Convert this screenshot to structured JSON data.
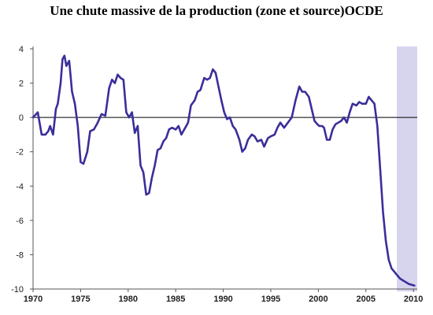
{
  "chart_data": {
    "type": "line",
    "title": "Une chute massive de la production (zone et source)OCDE",
    "xlabel": "",
    "ylabel": "",
    "xlim": [
      1970,
      2010.4
    ],
    "ylim": [
      -10,
      4
    ],
    "x_ticks": [
      1970,
      1975,
      1980,
      1985,
      1990,
      1995,
      2000,
      2005,
      2010
    ],
    "y_ticks": [
      4,
      2,
      0,
      -2,
      -4,
      -6,
      -8,
      -10
    ],
    "grid": false,
    "zero_line": true,
    "line_color": "#3a2e9a",
    "shaded_region": {
      "x_start": 2008.25,
      "x_end": 2010.4,
      "color": "#d7d5ee"
    },
    "series": [
      {
        "x": [
          1970.0,
          1970.5,
          1970.9,
          1971.3,
          1971.6,
          1971.8,
          1972.1,
          1972.4,
          1972.6,
          1972.9,
          1973.1,
          1973.3,
          1973.5,
          1973.8,
          1974.1,
          1974.4,
          1974.7,
          1975.0,
          1975.3,
          1975.7,
          1976.0,
          1976.4,
          1976.8,
          1977.2,
          1977.6,
          1978.0,
          1978.3,
          1978.6,
          1978.9,
          1979.2,
          1979.5,
          1979.8,
          1980.1,
          1980.4,
          1980.7,
          1981.0,
          1981.3,
          1981.6,
          1981.9,
          1982.2,
          1982.5,
          1982.8,
          1983.1,
          1983.4,
          1983.7,
          1984.0,
          1984.3,
          1984.6,
          1985.0,
          1985.3,
          1985.6,
          1986.0,
          1986.3,
          1986.6,
          1987.0,
          1987.3,
          1987.6,
          1988.0,
          1988.3,
          1988.6,
          1988.9,
          1989.2,
          1989.5,
          1989.8,
          1990.1,
          1990.4,
          1990.7,
          1991.0,
          1991.3,
          1991.7,
          1992.0,
          1992.3,
          1992.6,
          1993.0,
          1993.3,
          1993.6,
          1994.0,
          1994.3,
          1994.7,
          1995.0,
          1995.4,
          1995.7,
          1996.0,
          1996.4,
          1996.8,
          1997.2,
          1997.6,
          1998.0,
          1998.3,
          1998.6,
          1999.0,
          1999.3,
          1999.6,
          1999.9,
          2000.1,
          2000.4,
          2000.6,
          2000.9,
          2001.2,
          2001.5,
          2001.8,
          2002.1,
          2002.4,
          2002.7,
          2003.0,
          2003.3,
          2003.6,
          2004.0,
          2004.3,
          2004.6,
          2005.0,
          2005.3,
          2005.6,
          2005.9,
          2006.2,
          2006.5,
          2006.8,
          2007.1,
          2007.4,
          2007.7,
          2008.0,
          2008.3,
          2008.6,
          2008.9,
          2009.2,
          2009.5,
          2009.8,
          2010.1
        ],
        "values": [
          0.0,
          0.3,
          -1.0,
          -1.0,
          -0.8,
          -0.5,
          -1.0,
          0.5,
          0.8,
          2.0,
          3.4,
          3.6,
          3.0,
          3.3,
          1.5,
          0.8,
          -0.5,
          -2.6,
          -2.7,
          -2.0,
          -0.8,
          -0.7,
          -0.3,
          0.2,
          0.1,
          1.7,
          2.2,
          2.0,
          2.5,
          2.3,
          2.2,
          0.3,
          0.0,
          0.3,
          -0.9,
          -0.5,
          -2.8,
          -3.2,
          -4.5,
          -4.4,
          -3.5,
          -2.8,
          -1.9,
          -1.8,
          -1.4,
          -1.2,
          -0.7,
          -0.6,
          -0.7,
          -0.5,
          -1.0,
          -0.6,
          -0.3,
          0.7,
          1.0,
          1.5,
          1.6,
          2.3,
          2.2,
          2.3,
          2.8,
          2.6,
          1.8,
          1.0,
          0.3,
          -0.1,
          0.0,
          -0.5,
          -0.7,
          -1.3,
          -2.0,
          -1.8,
          -1.3,
          -1.0,
          -1.1,
          -1.4,
          -1.3,
          -1.7,
          -1.2,
          -1.1,
          -1.0,
          -0.6,
          -0.3,
          -0.6,
          -0.3,
          0.0,
          1.0,
          1.8,
          1.5,
          1.5,
          1.2,
          0.5,
          -0.2,
          -0.4,
          -0.5,
          -0.5,
          -0.6,
          -1.3,
          -1.3,
          -0.7,
          -0.4,
          -0.3,
          -0.2,
          0.0,
          -0.3,
          0.3,
          0.8,
          0.7,
          0.9,
          0.8,
          0.8,
          1.2,
          1.0,
          0.8,
          -0.5,
          -3.0,
          -5.5,
          -7.2,
          -8.3,
          -8.8,
          -9.0,
          -9.2,
          -9.4,
          -9.5,
          -9.6,
          -9.7,
          -9.75,
          -9.8
        ]
      }
    ]
  }
}
